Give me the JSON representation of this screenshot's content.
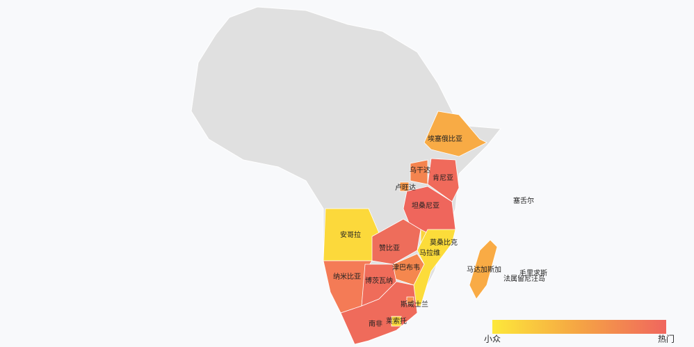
{
  "regions": [
    {
      "label": "埃塞俄比亚",
      "color": "#f8ab45"
    },
    {
      "label": "肯尼亚",
      "color": "#f06a5b"
    },
    {
      "label": "乌干达",
      "color": "#f4844f"
    },
    {
      "label": "卢旺达",
      "color": "#f3974a"
    },
    {
      "label": "坦桑尼亚",
      "color": "#ef665c"
    },
    {
      "label": "安哥拉",
      "color": "#fcd93b"
    },
    {
      "label": "赞比亚",
      "color": "#ee6d5b"
    },
    {
      "label": "马拉维",
      "color": "#f9d33c"
    },
    {
      "label": "莫桑比克",
      "color": "#fcdc3a"
    },
    {
      "label": "津巴布韦",
      "color": "#f5874e"
    },
    {
      "label": "纳米比亚",
      "color": "#f47b56"
    },
    {
      "label": "博茨瓦纳",
      "color": "#ef6c5a"
    },
    {
      "label": "南非",
      "color": "#ef6b5b"
    },
    {
      "label": "莱索托",
      "color": "#fcd93b"
    },
    {
      "label": "斯威士兰",
      "color": "#f48f4c"
    },
    {
      "label": "马达加斯加",
      "color": "#f9ab45"
    },
    {
      "label": "塞舌尔",
      "color": "#f5a245"
    },
    {
      "label": "毛里求斯",
      "color": "#f5a245"
    },
    {
      "label": "法属留尼汪岛",
      "color": "#f5a245"
    }
  ],
  "legend": {
    "low": "小众",
    "high": "热门",
    "colors": [
      "#fde83a",
      "#f5a444",
      "#f0665e"
    ]
  }
}
